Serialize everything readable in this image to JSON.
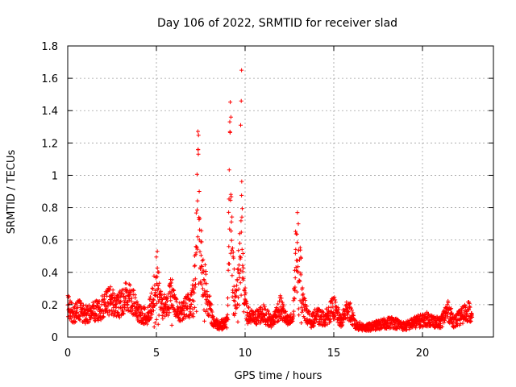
{
  "chart_data": {
    "type": "scatter",
    "title": "Day 106 of 2022, SRMTID for receiver slad",
    "xlabel": "GPS time / hours",
    "ylabel": "SRMTID / TECUs",
    "xlim": [
      0,
      24
    ],
    "ylim": [
      0,
      1.8
    ],
    "xticks": [
      0,
      5,
      10,
      15,
      20
    ],
    "xtick_labels": [
      "0",
      "5",
      "10",
      "15",
      "20"
    ],
    "yticks": [
      0,
      0.2,
      0.4,
      0.6,
      0.8,
      1.0,
      1.2,
      1.4,
      1.6,
      1.8
    ],
    "ytick_labels": [
      "0",
      "0.2",
      "0.4",
      "0.6",
      "0.8",
      "1",
      "1.2",
      "1.4",
      "1.6",
      "1.8"
    ],
    "grid": true,
    "marker": "+",
    "series_color": "#ff0000",
    "x_range_observed": [
      0,
      22.8
    ],
    "envelope_hours": [
      0.0,
      0.3,
      0.6,
      1.0,
      1.5,
      2.0,
      2.4,
      2.8,
      3.2,
      3.5,
      4.0,
      4.5,
      4.8,
      5.0,
      5.3,
      5.6,
      5.9,
      6.2,
      6.6,
      7.0,
      7.2,
      7.35,
      7.5,
      7.7,
      7.9,
      8.2,
      8.6,
      9.0,
      9.15,
      9.3,
      9.5,
      9.7,
      9.8,
      9.9,
      10.1,
      10.5,
      11.0,
      11.5,
      12.0,
      12.4,
      12.7,
      12.9,
      13.0,
      13.3,
      13.7,
      14.0,
      14.5,
      15.0,
      15.4,
      15.8,
      16.2,
      16.8,
      17.5,
      18.3,
      19.0,
      19.6,
      20.3,
      21.0,
      21.4,
      21.8,
      22.2,
      22.6,
      22.8
    ],
    "envelope_values": [
      0.22,
      0.15,
      0.18,
      0.15,
      0.17,
      0.2,
      0.25,
      0.2,
      0.26,
      0.28,
      0.15,
      0.14,
      0.25,
      0.4,
      0.2,
      0.22,
      0.32,
      0.15,
      0.2,
      0.22,
      0.5,
      1.05,
      0.55,
      0.42,
      0.25,
      0.1,
      0.08,
      0.1,
      1.2,
      0.45,
      0.25,
      0.55,
      0.88,
      0.35,
      0.15,
      0.12,
      0.16,
      0.1,
      0.2,
      0.1,
      0.12,
      0.68,
      0.6,
      0.2,
      0.1,
      0.14,
      0.12,
      0.2,
      0.1,
      0.2,
      0.08,
      0.06,
      0.08,
      0.1,
      0.07,
      0.1,
      0.12,
      0.09,
      0.18,
      0.1,
      0.14,
      0.18,
      0.12
    ],
    "spikes": [
      {
        "x": 7.35,
        "y": 1.16
      },
      {
        "x": 9.2,
        "y": 1.36
      },
      {
        "x": 9.8,
        "y": 1.65
      },
      {
        "x": 9.78,
        "y": 1.46
      },
      {
        "x": 9.75,
        "y": 1.31
      },
      {
        "x": 12.95,
        "y": 0.77
      },
      {
        "x": 5.05,
        "y": 0.53
      }
    ],
    "points_generated": 2200
  }
}
